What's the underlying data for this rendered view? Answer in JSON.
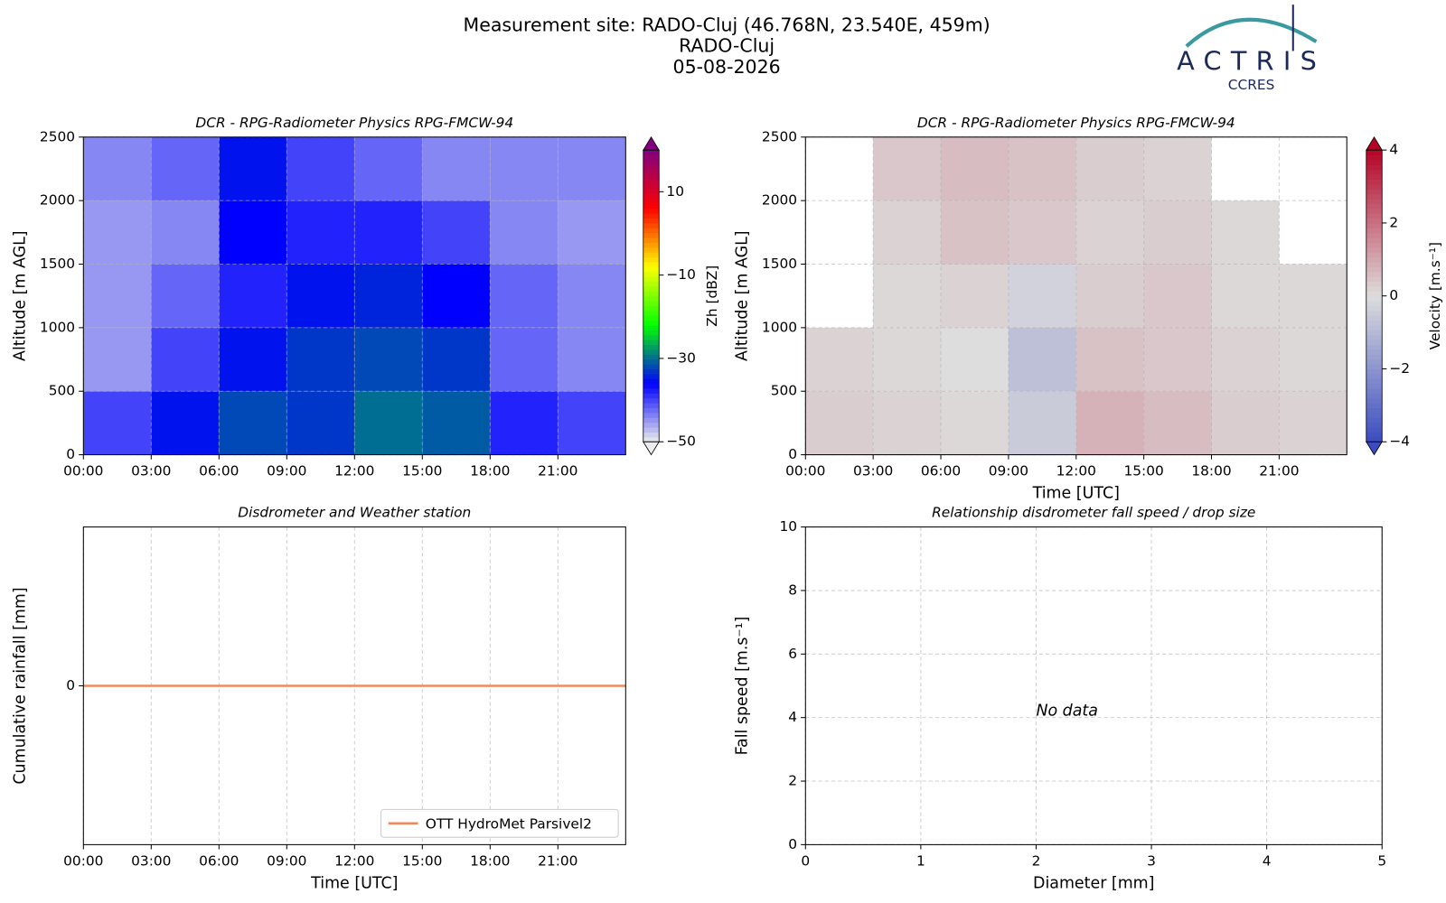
{
  "header": {
    "title": "Measurement site: RADO-Cluj (46.768N, 23.540E, 459m)",
    "subtitle": "RADO-Cluj",
    "date": "05-08-2026"
  },
  "logo": {
    "name": "ACTRIS",
    "sub": "CCRES"
  },
  "chart_data": [
    {
      "type": "heatmap",
      "title": "DCR - RPG-Radiometer Physics RPG-FMCW-94",
      "ylabel": "Altitude [m AGL]",
      "xlim": [
        0,
        24
      ],
      "xticks": [
        {
          "value": 0,
          "label": "00:00"
        },
        {
          "value": 3,
          "label": "03:00"
        },
        {
          "value": 6,
          "label": "06:00"
        },
        {
          "value": 9,
          "label": "09:00"
        },
        {
          "value": 12,
          "label": "12:00"
        },
        {
          "value": 15,
          "label": "15:00"
        },
        {
          "value": 18,
          "label": "18:00"
        },
        {
          "value": 21,
          "label": "21:00"
        }
      ],
      "ylim": [
        0,
        2500
      ],
      "yticks": [
        0,
        500,
        1000,
        1500,
        2000,
        2500
      ],
      "grid": true,
      "x_bins": [
        0,
        3,
        6,
        9,
        12,
        15,
        18,
        21,
        24
      ],
      "y_bins": [
        0,
        500,
        1000,
        1500,
        2000,
        2500
      ],
      "values": [
        [
          -40,
          -35,
          -32,
          -33,
          -30,
          -31,
          -38,
          -40
        ],
        [
          -45,
          -40,
          -35,
          -33,
          -32,
          -33,
          -42,
          -44
        ],
        [
          -45,
          -42,
          -38,
          -35,
          -34,
          -36,
          -42,
          -44
        ],
        [
          -45,
          -44,
          -36,
          -38,
          -38,
          -40,
          -44,
          -45
        ],
        [
          -44,
          -42,
          -35,
          -40,
          -42,
          -44,
          -44,
          -44
        ]
      ],
      "colorbar": {
        "label": "Zh [dBZ]",
        "clim": [
          -50,
          20
        ],
        "ticks": [
          {
            "value": -50,
            "label": "−50"
          },
          {
            "value": -30,
            "label": "−30"
          },
          {
            "value": -10,
            "label": "−10"
          },
          10
        ],
        "colormap": [
          "#ececec",
          "#0000ff",
          "#00ff00",
          "#ffff00",
          "#ff0000",
          "#800080"
        ]
      }
    },
    {
      "type": "heatmap",
      "title": "DCR - RPG-Radiometer Physics RPG-FMCW-94",
      "ylabel": "Altitude [m AGL]",
      "xlabel": "Time [UTC]",
      "xlim": [
        0,
        24
      ],
      "xticks": [
        {
          "value": 0,
          "label": "00:00"
        },
        {
          "value": 3,
          "label": "03:00"
        },
        {
          "value": 6,
          "label": "06:00"
        },
        {
          "value": 9,
          "label": "09:00"
        },
        {
          "value": 12,
          "label": "12:00"
        },
        {
          "value": 15,
          "label": "15:00"
        },
        {
          "value": 18,
          "label": "18:00"
        },
        {
          "value": 21,
          "label": "21:00"
        }
      ],
      "ylim": [
        0,
        2500
      ],
      "yticks": [
        0,
        500,
        1000,
        1500,
        2000,
        2500
      ],
      "grid": true,
      "x_bins": [
        0,
        3,
        6,
        9,
        12,
        15,
        18,
        21,
        24
      ],
      "y_bins": [
        0,
        500,
        1000,
        1500,
        2000,
        2500
      ],
      "values": [
        [
          0.3,
          0.2,
          0.1,
          -0.5,
          0.8,
          0.6,
          0.3,
          0.2
        ],
        [
          0.2,
          0.1,
          0,
          -0.8,
          0.5,
          0.4,
          0.2,
          0.1
        ],
        [
          null,
          0.1,
          0.2,
          -0.3,
          0.3,
          0.4,
          0.1,
          0.1
        ],
        [
          null,
          0.2,
          0.5,
          0.4,
          0.2,
          0.3,
          0.1,
          null
        ],
        [
          null,
          0.4,
          0.6,
          0.5,
          0.3,
          0.2,
          null,
          null
        ]
      ],
      "colorbar": {
        "label": "Velocity [m.s⁻¹]",
        "clim": [
          -4,
          4
        ],
        "ticks": [
          {
            "value": -4,
            "label": "−4"
          },
          {
            "value": -2,
            "label": "−2"
          },
          0,
          2,
          4
        ],
        "colormap": [
          "#3b4cc0",
          "#dddddd",
          "#b40426"
        ]
      }
    },
    {
      "type": "line",
      "title": "Disdrometer and Weather station",
      "ylabel": "Cumulative rainfall [mm]",
      "xlabel": "Time [UTC]",
      "xlim": [
        0,
        24
      ],
      "xticks": [
        {
          "value": 0,
          "label": "00:00"
        },
        {
          "value": 3,
          "label": "03:00"
        },
        {
          "value": 6,
          "label": "06:00"
        },
        {
          "value": 9,
          "label": "09:00"
        },
        {
          "value": 12,
          "label": "12:00"
        },
        {
          "value": 15,
          "label": "15:00"
        },
        {
          "value": 18,
          "label": "18:00"
        },
        {
          "value": 21,
          "label": "21:00"
        }
      ],
      "ylim": [
        -1,
        1
      ],
      "yticks": [
        0
      ],
      "grid": true,
      "legend": "lower right",
      "x": [
        0,
        24
      ],
      "series": [
        {
          "name": "OTT HydroMet Parsivel2",
          "color": "#f08a5d",
          "values": [
            0,
            0
          ]
        }
      ]
    },
    {
      "type": "scatter",
      "title": "Relationship disdrometer fall speed / drop size",
      "ylabel": "Fall speed [m.s⁻¹]",
      "xlabel": "Diameter [mm]",
      "xlim": [
        0,
        5
      ],
      "xticks": [
        0,
        1,
        2,
        3,
        4,
        5
      ],
      "ylim": [
        0,
        10
      ],
      "yticks": [
        0,
        2,
        4,
        6,
        8,
        10
      ],
      "grid": true,
      "annotation": "No data"
    }
  ]
}
